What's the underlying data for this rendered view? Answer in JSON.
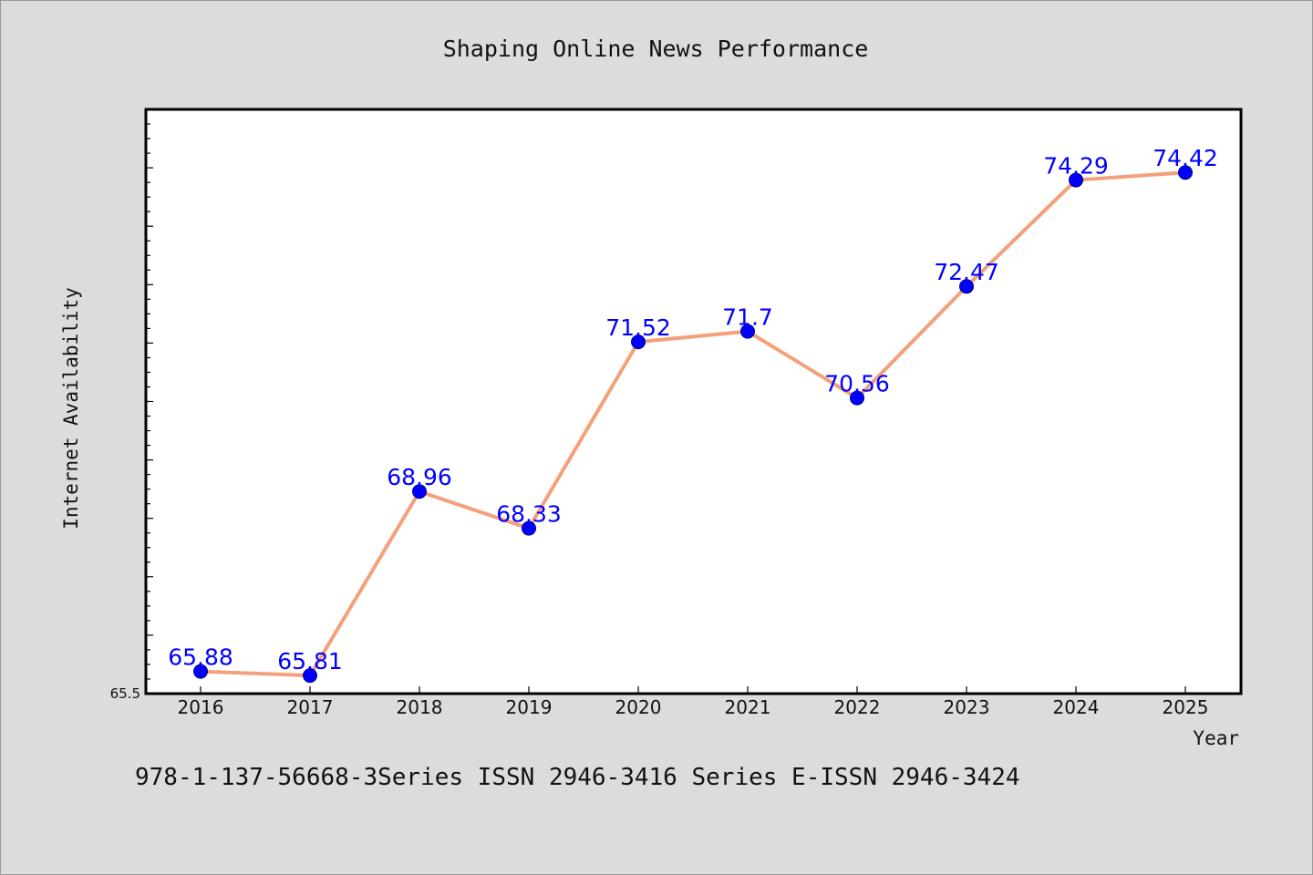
{
  "chart_data": {
    "type": "line",
    "title": "Shaping Online News Performance",
    "xlabel": "Year",
    "ylabel": "Internet Availability",
    "categories": [
      "2016",
      "2017",
      "2018",
      "2019",
      "2020",
      "2021",
      "2022",
      "2023",
      "2024",
      "2025"
    ],
    "series": [
      {
        "values": [
          65.88,
          65.81,
          68.96,
          68.33,
          71.52,
          71.7,
          70.56,
          72.47,
          74.29,
          74.42
        ],
        "data_labels": [
          "65.88",
          "65.81",
          "68.96",
          "68.33",
          "71.52",
          "71.7",
          "70.56",
          "72.47",
          "74.29",
          "74.42"
        ]
      }
    ],
    "y_tick_labels": [
      "65.5"
    ],
    "ylim": [
      65.5,
      75.5
    ],
    "grid": false,
    "colors": {
      "line": "#f4a07a",
      "marker": "#0000ff",
      "data_label": "#0000ff",
      "background": "#dcdcdc",
      "plot_background": "#ffffff"
    }
  },
  "footer": {
    "text": "978-1-137-56668-3Series ISSN 2946-3416 Series E-ISSN 2946-3424"
  }
}
